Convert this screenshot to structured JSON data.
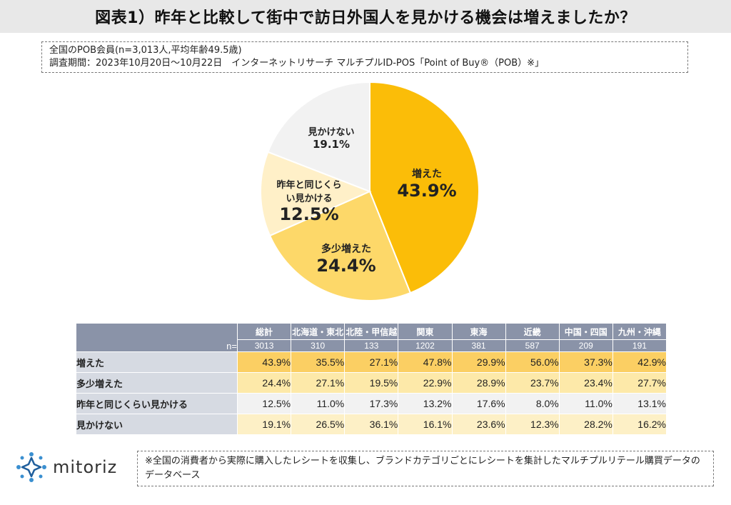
{
  "title": "図表1）昨年と比較して街中で訪日外国人を見かける機会は増えましたか？",
  "info": {
    "line1": "全国のPOB会員(n=3,013人,平均年齢49.5歳)",
    "line2": "調査期間：2023年10月20日～10月22日　インターネットリサーチ マルチプルID-POS「Point of Buy®（POB）※」"
  },
  "chart_data": [
    {
      "type": "pie",
      "slices": [
        {
          "label": "増えた",
          "value": 43.9,
          "value_label": "43.9%",
          "color": "#fbbd08"
        },
        {
          "label": "多少増えた",
          "value": 24.4,
          "value_label": "24.4%",
          "color": "#fdd869"
        },
        {
          "label": "昨年と同じくらい見かける",
          "label_lines": [
            "昨年と同じくら",
            "い見かける"
          ],
          "value": 12.5,
          "value_label": "12.5%",
          "color": "#fff0c8"
        },
        {
          "label": "見かけない",
          "value": 19.1,
          "value_label": "19.1%",
          "color": "#f2f2f2"
        }
      ]
    },
    {
      "type": "table",
      "n_label": "n=",
      "columns": [
        {
          "name": "総計",
          "n": "3013"
        },
        {
          "name": "北海道・東北",
          "n": "310"
        },
        {
          "name": "北陸・甲信越",
          "n": "133"
        },
        {
          "name": "関東",
          "n": "1202"
        },
        {
          "name": "東海",
          "n": "381"
        },
        {
          "name": "近畿",
          "n": "587"
        },
        {
          "name": "中国・四国",
          "n": "209"
        },
        {
          "name": "九州・沖縄",
          "n": "191"
        }
      ],
      "rows": [
        {
          "label": "増えた",
          "values": [
            "43.9%",
            "35.5%",
            "27.1%",
            "47.8%",
            "29.9%",
            "56.0%",
            "37.3%",
            "42.9%"
          ]
        },
        {
          "label": "多少増えた",
          "values": [
            "24.4%",
            "27.1%",
            "19.5%",
            "22.9%",
            "28.9%",
            "23.7%",
            "23.4%",
            "27.7%"
          ]
        },
        {
          "label": "昨年と同じくらい見かける",
          "values": [
            "12.5%",
            "11.0%",
            "17.3%",
            "13.2%",
            "17.6%",
            "8.0%",
            "11.0%",
            "13.1%"
          ]
        },
        {
          "label": "見かけない",
          "values": [
            "19.1%",
            "26.5%",
            "36.1%",
            "16.1%",
            "23.6%",
            "12.3%",
            "28.2%",
            "16.2%"
          ]
        }
      ]
    }
  ],
  "logo": {
    "text": "mitoriz",
    "icon": "mitoriz-star-icon",
    "color": "#3a8fd0"
  },
  "footnote": "※全国の消費者から実際に購入したレシートを収集し、ブランドカテゴリごとにレシートを集計したマルチプルリテール購買データのデータベース"
}
